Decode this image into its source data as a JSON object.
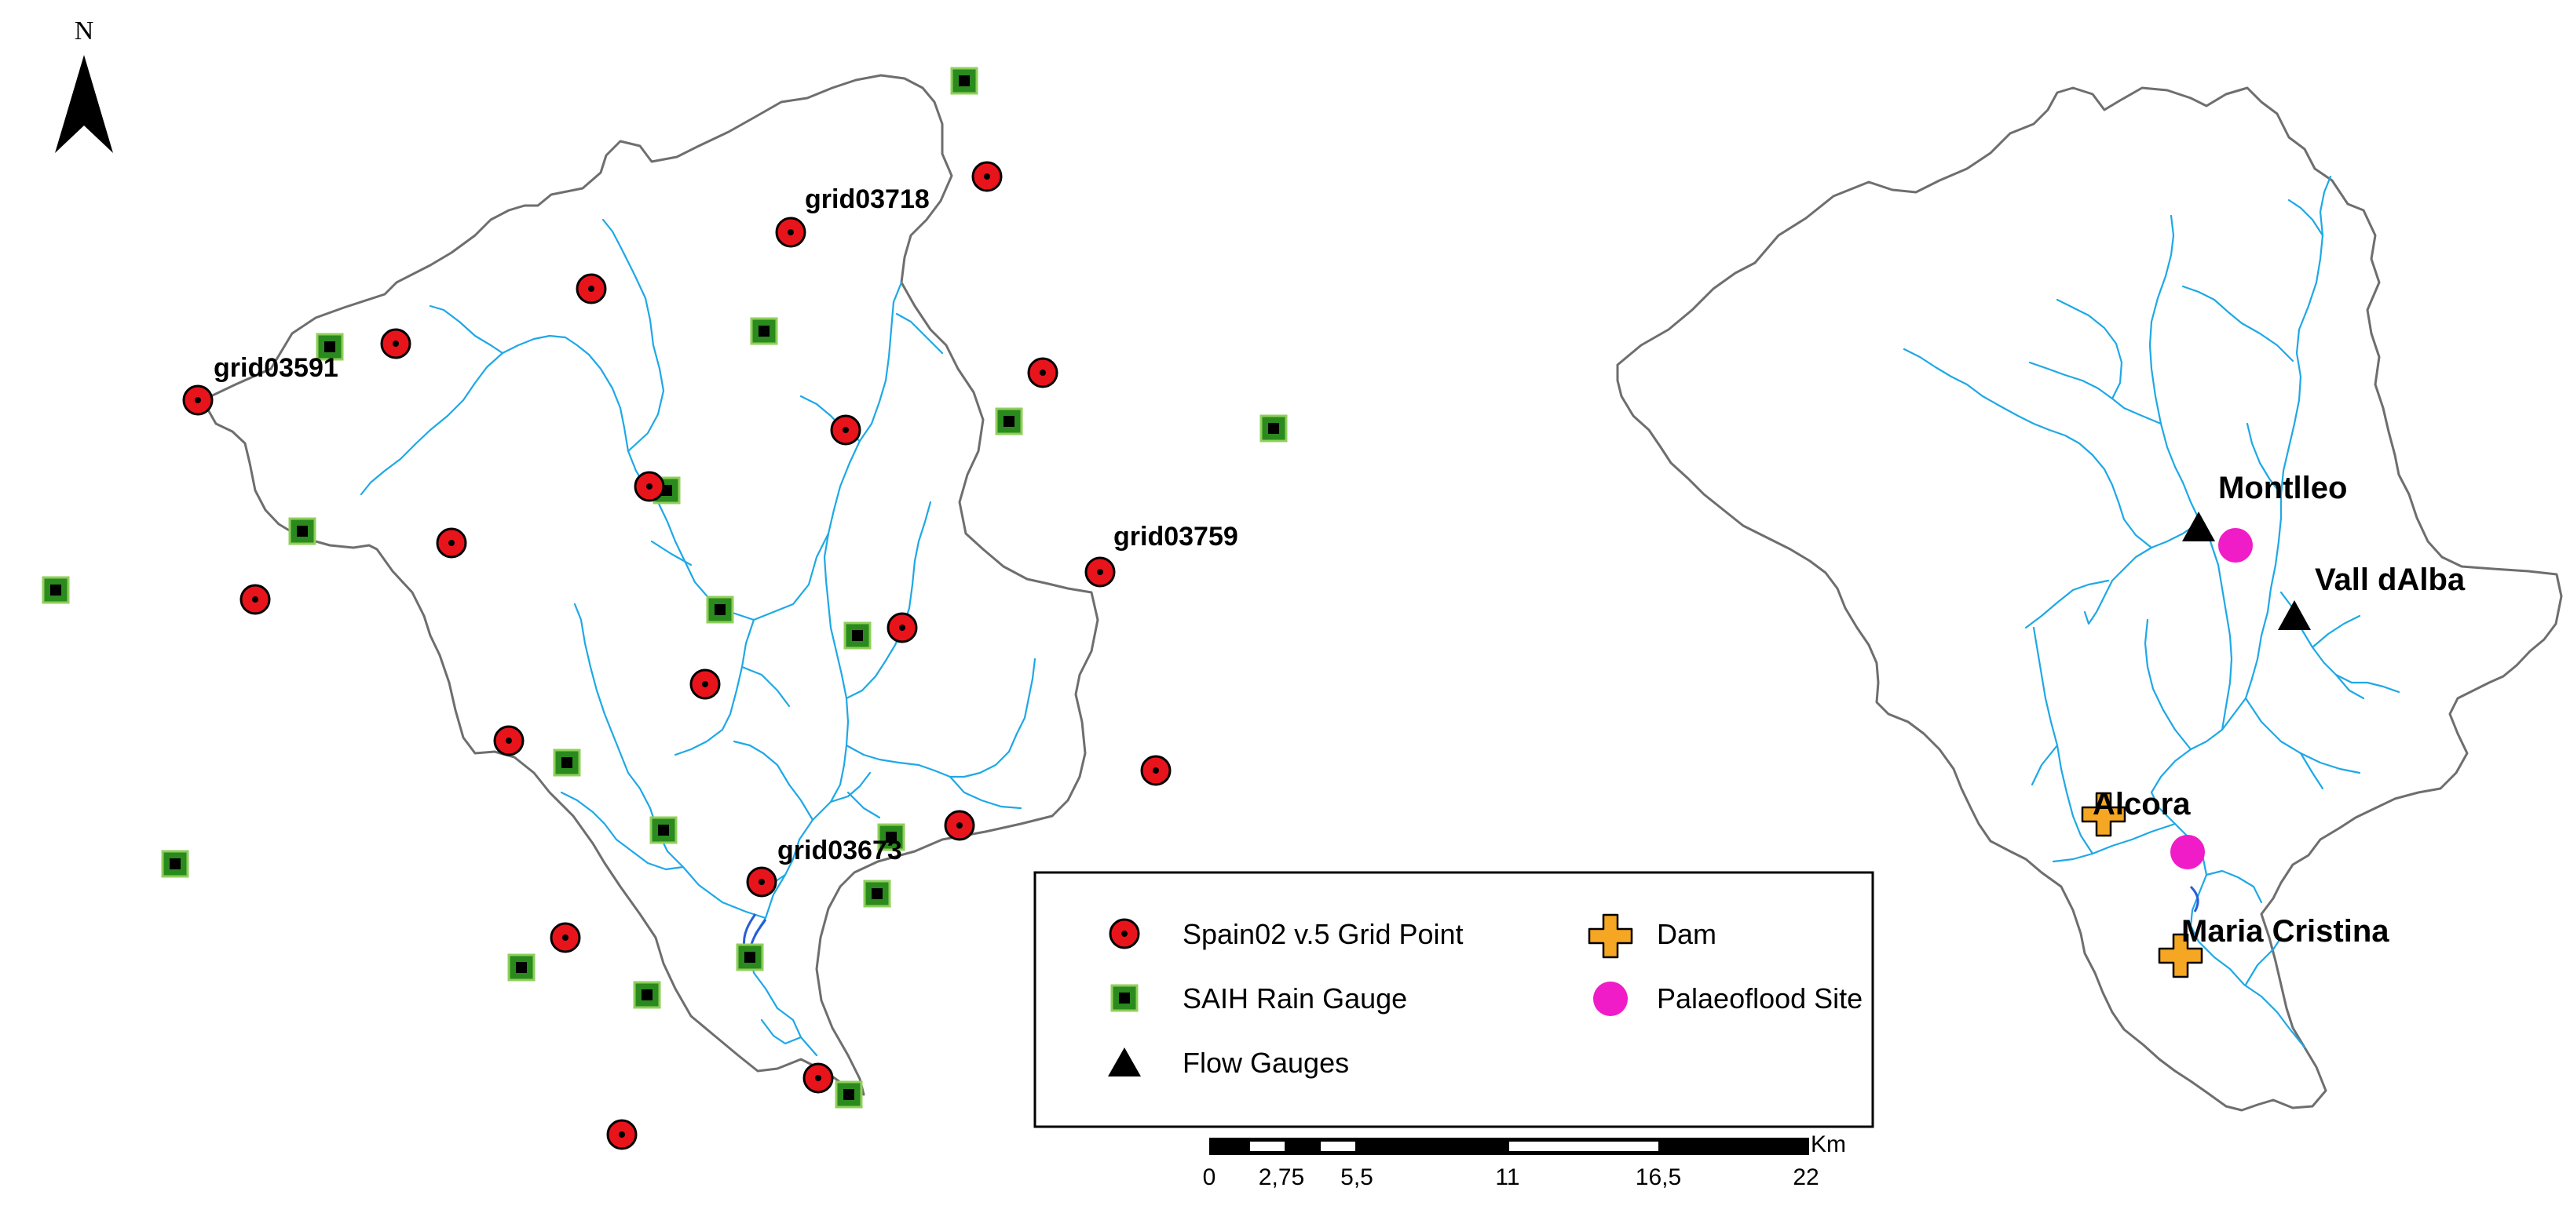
{
  "north_arrow": {
    "letter": "N"
  },
  "left_map": {
    "labels": {
      "g1": "grid03718",
      "g2": "grid03591",
      "g3": "grid03759",
      "g4": "grid03673"
    }
  },
  "right_map": {
    "labels": {
      "montlleo": "Montlleo",
      "valldalba": "Vall dAlba",
      "alcora": "Alcora",
      "mariacristina": "Maria Cristina"
    }
  },
  "legend": {
    "grid_point": "Spain02 v.5 Grid Point",
    "rain_gauge": "SAIH Rain Gauge",
    "flow_gauges": "Flow Gauges",
    "dam": "Dam",
    "palaeoflood": "Palaeoflood Site"
  },
  "scale_bar": {
    "unit": "Km",
    "ticks": [
      "0",
      "2,75",
      "5,5",
      "11",
      "16,5",
      "22"
    ]
  },
  "colors": {
    "river": "#1ea8e6",
    "boundary": "#6e6e6e",
    "grid_point_fill": "#e8141b",
    "rain_gauge_fill": "#2a8a1e",
    "dam_fill": "#f5a623",
    "palaeoflood_fill": "#f01cc8"
  },
  "icons": [
    "north-arrow-icon",
    "grid-point-icon",
    "rain-gauge-icon",
    "flow-gauge-icon",
    "dam-icon",
    "palaeoflood-icon"
  ]
}
